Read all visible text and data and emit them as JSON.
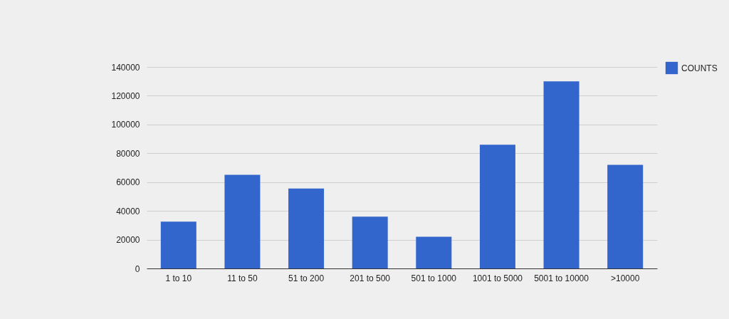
{
  "chart_data": {
    "type": "bar",
    "categories": [
      "1 to 10",
      "11 to 50",
      "51 to 200",
      "201 to 500",
      "501 to 1000",
      "1001 to 5000",
      "5001 to 10000",
      ">10000"
    ],
    "series": [
      {
        "name": "COUNTS",
        "color": "#3366cc",
        "values": [
          32500,
          65000,
          55500,
          36000,
          22000,
          86000,
          130000,
          72000
        ]
      }
    ],
    "ylim": [
      0,
      140000
    ],
    "yticks": [
      0,
      20000,
      40000,
      60000,
      80000,
      100000,
      120000,
      140000
    ],
    "grid": "y",
    "legend": "top right"
  }
}
